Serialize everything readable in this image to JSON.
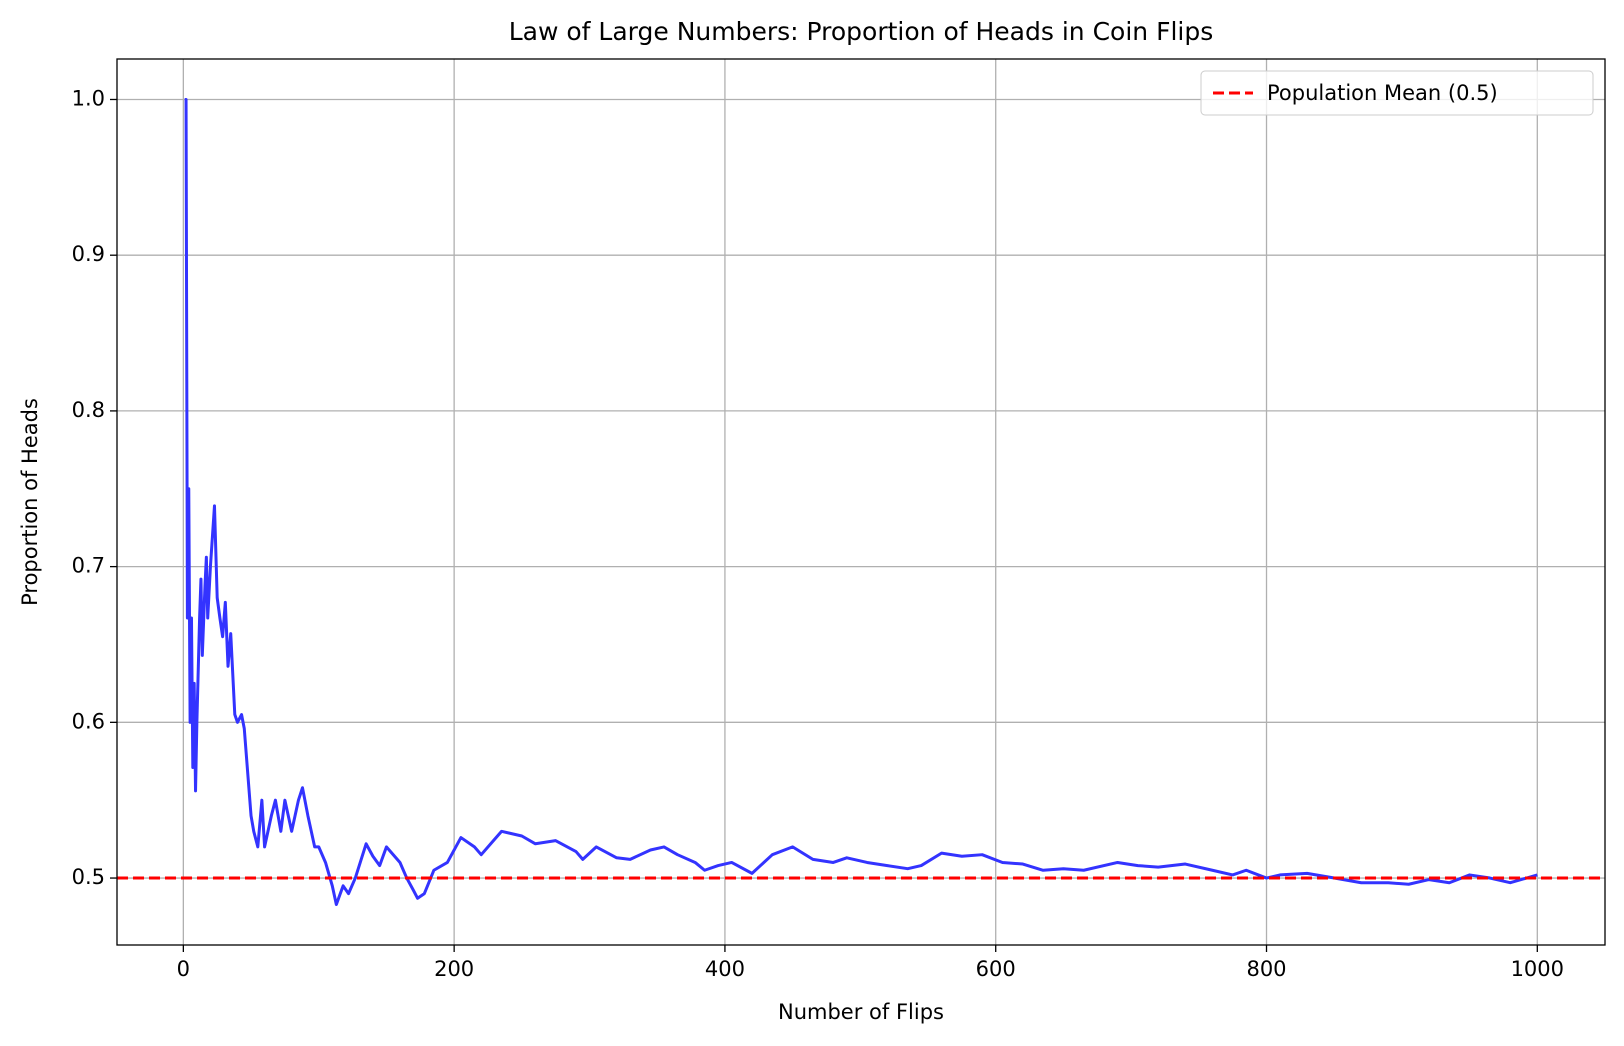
{
  "chart_data": {
    "type": "line",
    "title": "Law of Large Numbers: Proportion of Heads in Coin Flips",
    "x_label": "Number of Flips",
    "y_label": "Proportion of Heads",
    "x": [
      1,
      2,
      3,
      4,
      5,
      6,
      7,
      8,
      9,
      10,
      12,
      13,
      14,
      16,
      17,
      18,
      20,
      23,
      25,
      27,
      29,
      31,
      33,
      35,
      38,
      40,
      43,
      45,
      50,
      52,
      55,
      58,
      60,
      65,
      68,
      72,
      75,
      80,
      85,
      88,
      92,
      97,
      100,
      105,
      110,
      113,
      118,
      122,
      127,
      135,
      140,
      145,
      150,
      160,
      165,
      170,
      173,
      178,
      185,
      195,
      205,
      215,
      220,
      230,
      235,
      250,
      260,
      275,
      290,
      295,
      305,
      320,
      330,
      345,
      355,
      365,
      378,
      385,
      395,
      405,
      420,
      435,
      450,
      465,
      480,
      490,
      505,
      520,
      535,
      545,
      560,
      575,
      590,
      605,
      620,
      635,
      650,
      665,
      690,
      705,
      720,
      740,
      760,
      775,
      785,
      800,
      810,
      830,
      850,
      870,
      890,
      905,
      920,
      935,
      950,
      965,
      980,
      1000
    ],
    "series": [
      {
        "name": "Proportion of Heads",
        "color": "#3333ff",
        "values": [
          1.0,
          1.0,
          0.667,
          0.75,
          0.6,
          0.667,
          0.571,
          0.625,
          0.556,
          0.6,
          0.667,
          0.692,
          0.643,
          0.688,
          0.706,
          0.667,
          0.7,
          0.739,
          0.68,
          0.667,
          0.655,
          0.677,
          0.636,
          0.657,
          0.605,
          0.6,
          0.605,
          0.596,
          0.54,
          0.53,
          0.52,
          0.55,
          0.52,
          0.54,
          0.55,
          0.53,
          0.55,
          0.53,
          0.55,
          0.558,
          0.54,
          0.52,
          0.52,
          0.51,
          0.495,
          0.483,
          0.495,
          0.49,
          0.5,
          0.522,
          0.514,
          0.508,
          0.52,
          0.51,
          0.5,
          0.492,
          0.487,
          0.49,
          0.505,
          0.51,
          0.526,
          0.52,
          0.515,
          0.525,
          0.53,
          0.527,
          0.522,
          0.524,
          0.517,
          0.512,
          0.52,
          0.513,
          0.512,
          0.518,
          0.52,
          0.515,
          0.51,
          0.505,
          0.508,
          0.51,
          0.503,
          0.515,
          0.52,
          0.512,
          0.51,
          0.513,
          0.51,
          0.508,
          0.506,
          0.508,
          0.516,
          0.514,
          0.515,
          0.51,
          0.509,
          0.505,
          0.506,
          0.505,
          0.51,
          0.508,
          0.507,
          0.509,
          0.505,
          0.502,
          0.505,
          0.5,
          0.502,
          0.503,
          0.5,
          0.497,
          0.497,
          0.496,
          0.499,
          0.497,
          0.502,
          0.5,
          0.497,
          0.502
        ]
      }
    ],
    "hline": {
      "name": "Population Mean (0.5)",
      "value": 0.5,
      "color": "#ff0000",
      "dashed": true
    },
    "xlim": [
      -49,
      1050
    ],
    "ylim": [
      0.457,
      1.026
    ],
    "xticks": [
      0,
      200,
      400,
      600,
      800,
      1000
    ],
    "yticks": [
      0.5,
      0.6,
      0.7,
      0.8,
      0.9,
      {
        "value": 1,
        "label": "1.0"
      }
    ],
    "grid": true,
    "legend": "upper right"
  }
}
